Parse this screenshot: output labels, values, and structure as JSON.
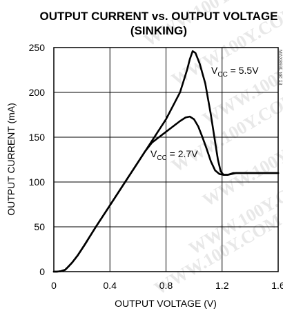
{
  "chart_data": {
    "type": "line",
    "title_line1": "OUTPUT CURRENT vs. OUTPUT VOLTAGE",
    "title_line2": "(SINKING)",
    "xlabel": "OUTPUT VOLTAGE (V)",
    "ylabel": "OUTPUT CURRENT (mA)",
    "xlim": [
      0,
      1.6
    ],
    "ylim": [
      0,
      250
    ],
    "xticks": [
      "0",
      "0.4",
      "0.8",
      "1.2",
      "1.6"
    ],
    "yticks": [
      "0",
      "50",
      "100",
      "150",
      "200",
      "250"
    ],
    "grid": true,
    "series": [
      {
        "name_main": "V",
        "name_sub": "CC",
        "name_tail": " = 5.5V",
        "points": [
          [
            0.0,
            0
          ],
          [
            0.02,
            0
          ],
          [
            0.05,
            0.5
          ],
          [
            0.08,
            2
          ],
          [
            0.1,
            5
          ],
          [
            0.13,
            10
          ],
          [
            0.17,
            18
          ],
          [
            0.22,
            30
          ],
          [
            0.3,
            50
          ],
          [
            0.4,
            74
          ],
          [
            0.5,
            98
          ],
          [
            0.6,
            122
          ],
          [
            0.7,
            146
          ],
          [
            0.8,
            170
          ],
          [
            0.9,
            200
          ],
          [
            0.95,
            225
          ],
          [
            0.97,
            237
          ],
          [
            0.99,
            246
          ],
          [
            1.01,
            244
          ],
          [
            1.04,
            232
          ],
          [
            1.08,
            210
          ],
          [
            1.12,
            175
          ],
          [
            1.15,
            145
          ],
          [
            1.17,
            125
          ],
          [
            1.19,
            112
          ],
          [
            1.21,
            108
          ],
          [
            1.24,
            108
          ],
          [
            1.28,
            110
          ],
          [
            1.35,
            110
          ],
          [
            1.45,
            110
          ],
          [
            1.6,
            110
          ]
        ]
      },
      {
        "name_main": "V",
        "name_sub": "CC",
        "name_tail": " = 2.7V",
        "points": [
          [
            0.0,
            0
          ],
          [
            0.02,
            0
          ],
          [
            0.05,
            0.5
          ],
          [
            0.08,
            2
          ],
          [
            0.1,
            5
          ],
          [
            0.13,
            10
          ],
          [
            0.17,
            18
          ],
          [
            0.22,
            30
          ],
          [
            0.3,
            50
          ],
          [
            0.4,
            74
          ],
          [
            0.5,
            98
          ],
          [
            0.6,
            122
          ],
          [
            0.65,
            134
          ],
          [
            0.7,
            144
          ],
          [
            0.75,
            150
          ],
          [
            0.8,
            156
          ],
          [
            0.85,
            162
          ],
          [
            0.9,
            168
          ],
          [
            0.94,
            172
          ],
          [
            0.97,
            173
          ],
          [
            1.0,
            170
          ],
          [
            1.03,
            162
          ],
          [
            1.06,
            150
          ],
          [
            1.09,
            137
          ],
          [
            1.12,
            123
          ],
          [
            1.15,
            113
          ],
          [
            1.18,
            109
          ],
          [
            1.21,
            108
          ],
          [
            1.24,
            108
          ],
          [
            1.3,
            110
          ],
          [
            1.45,
            110
          ],
          [
            1.6,
            110
          ]
        ]
      }
    ]
  },
  "watermark": "WWW.100Y.COM",
  "side_code": "MAX893L toc 13"
}
